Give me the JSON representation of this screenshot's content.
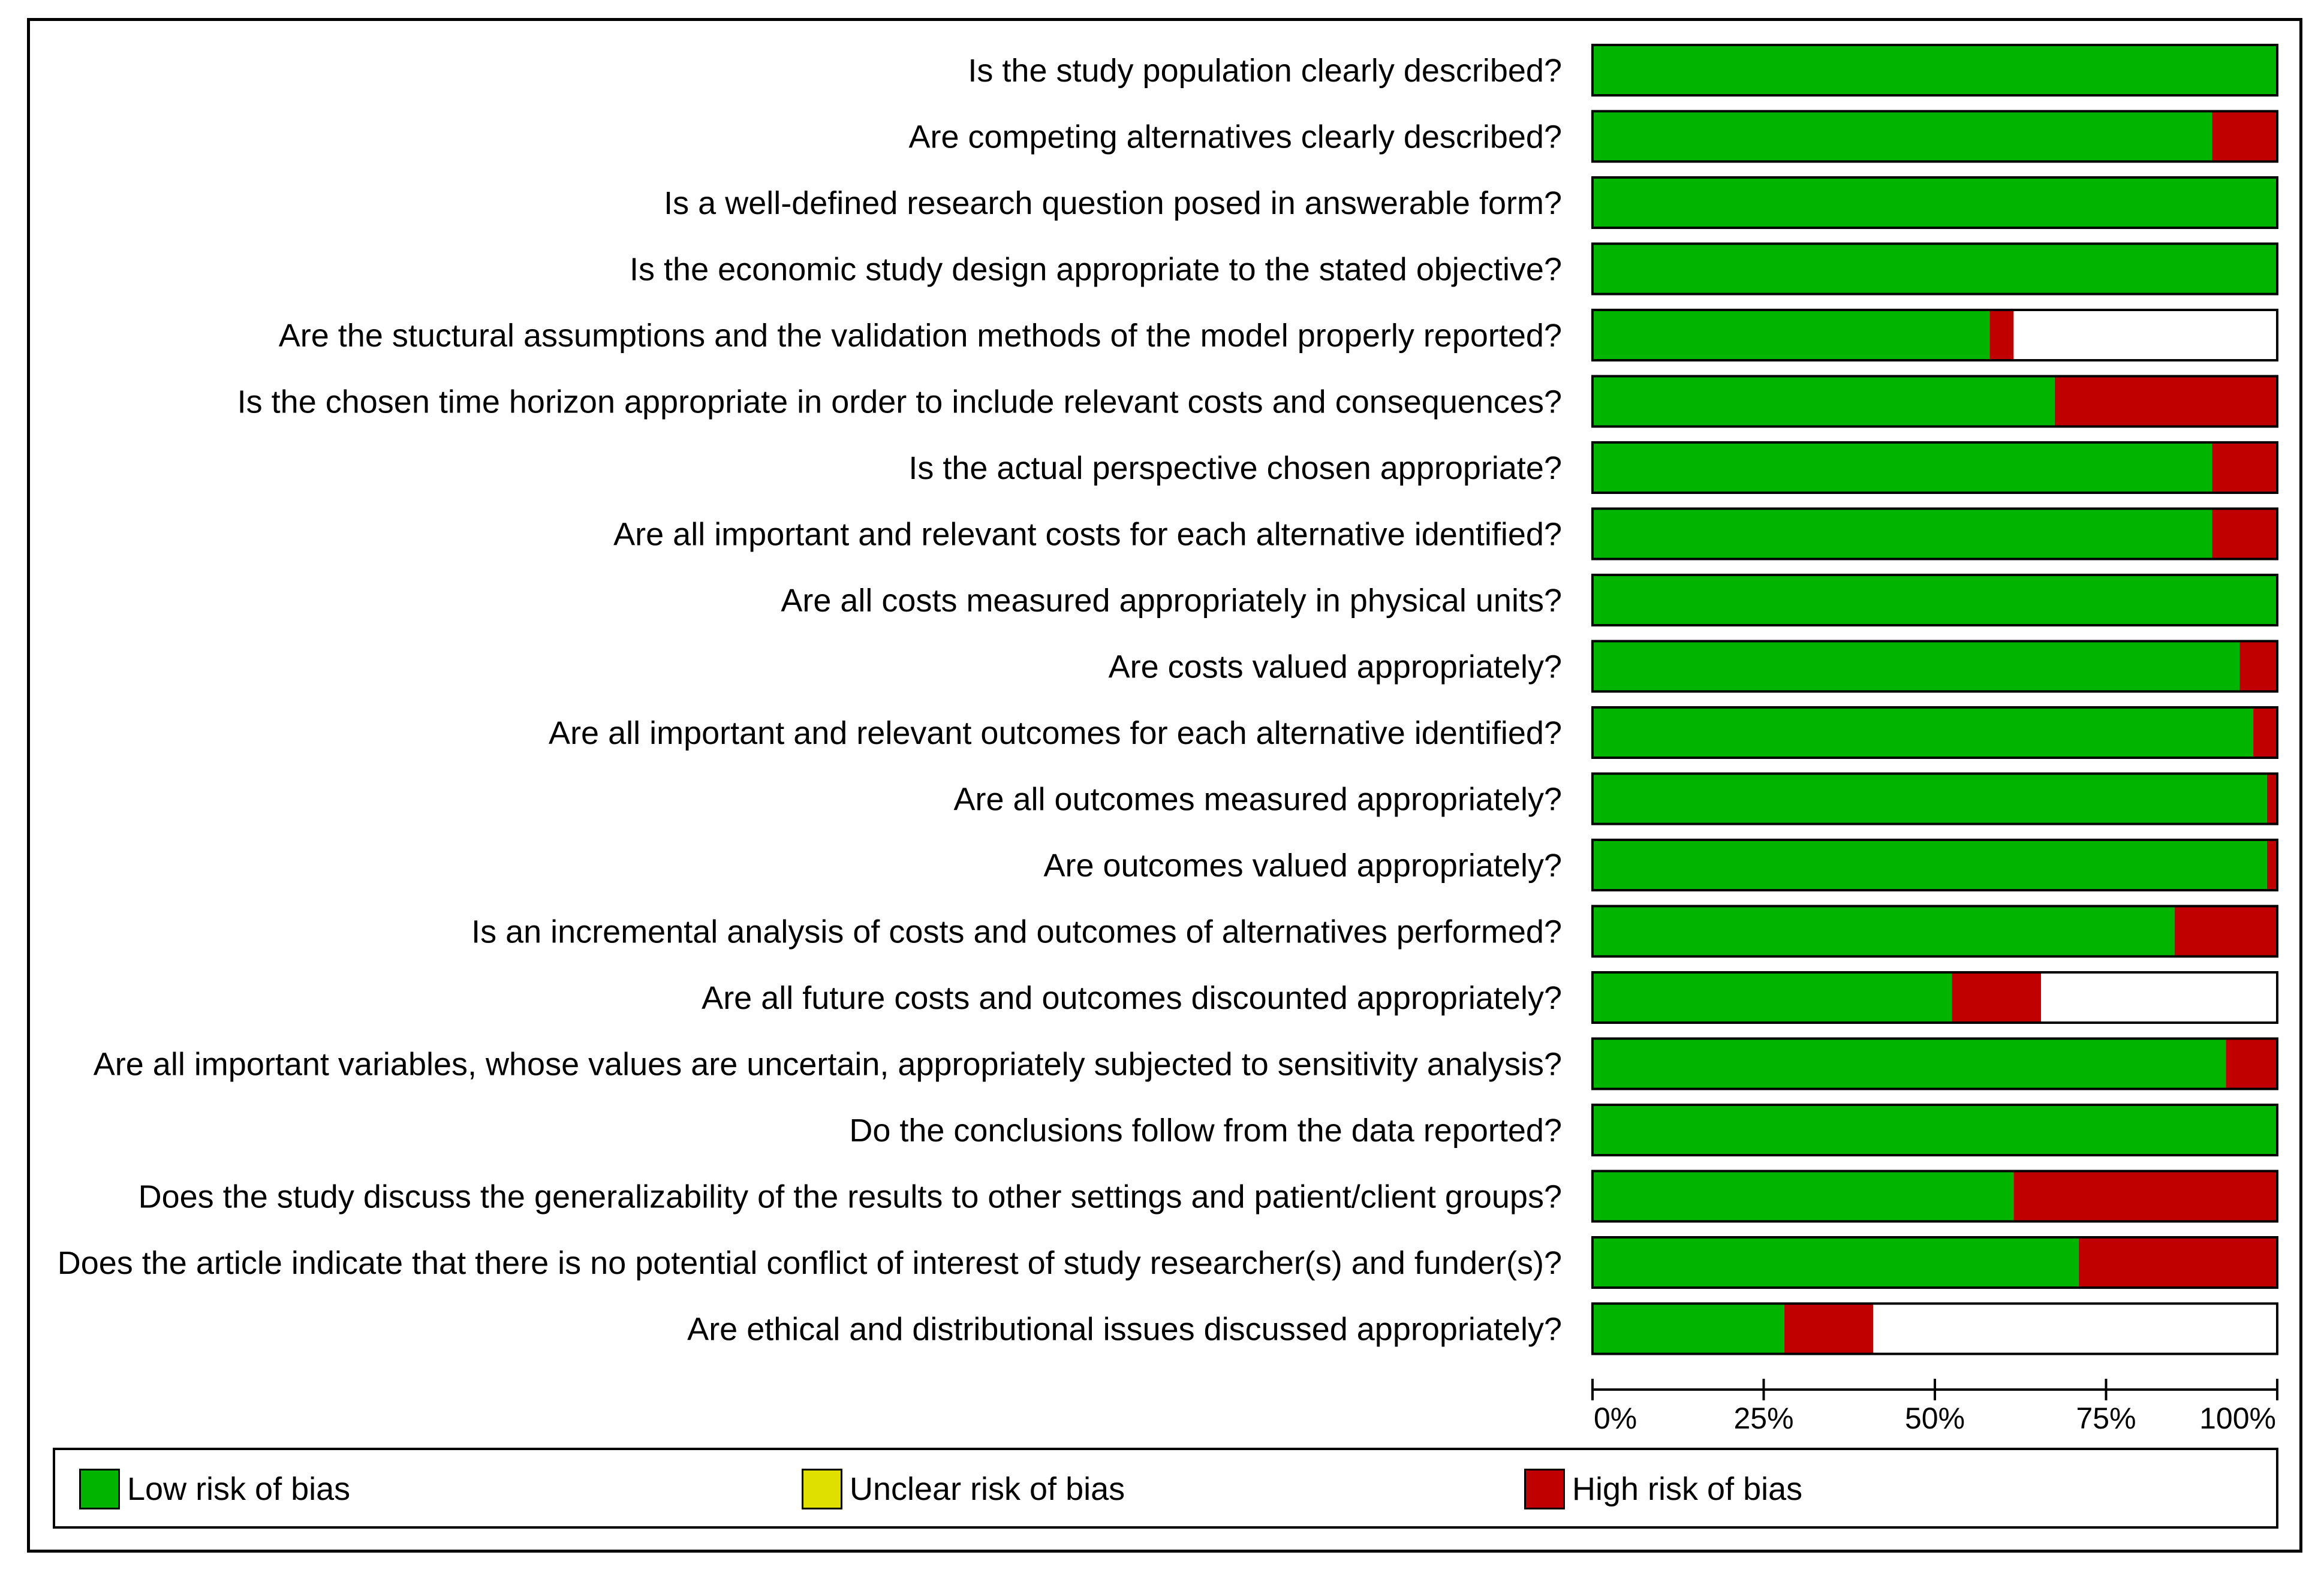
{
  "colors": {
    "low": "#00b400",
    "unclear": "#e0e000",
    "high": "#c00000",
    "none": "#ffffff"
  },
  "legend": {
    "low_label": "Low risk of bias",
    "unclear_label": "Unclear risk of bias",
    "high_label": "High risk of bias"
  },
  "chart_data": {
    "type": "bar",
    "orientation": "horizontal",
    "stacked": true,
    "xlim": [
      0,
      100
    ],
    "ticks": [
      "0%",
      "25%",
      "50%",
      "75%",
      "100%"
    ],
    "categories": [
      "Is the study population clearly described?",
      "Are competing alternatives clearly described?",
      "Is a well-defined research question posed in answerable form?",
      "Is the economic study design appropriate to the stated objective?",
      "Are the stuctural assumptions and the validation methods of the model properly reported?",
      "Is the chosen time horizon appropriate in order to include relevant costs and consequences?",
      "Is the actual perspective chosen appropriate?",
      "Are all important and relevant costs for each alternative identified?",
      "Are all costs measured appropriately in physical units?",
      "Are costs valued appropriately?",
      "Are all important and relevant outcomes for each alternative identified?",
      "Are all outcomes measured appropriately?",
      "Are outcomes valued appropriately?",
      "Is an incremental analysis of costs and outcomes of alternatives performed?",
      "Are all future costs and outcomes discounted appropriately?",
      "Are all important variables, whose values are uncertain, appropriately subjected to sensitivity analysis?",
      "Do the conclusions follow from the data reported?",
      "Does the study discuss the generalizability of the results to other settings and patient/client groups?",
      "Does the article indicate that there is no potential conflict of interest of study researcher(s) and funder(s)?",
      "Are ethical and distributional issues discussed appropriately?"
    ],
    "series": [
      {
        "name": "Low risk of bias",
        "key": "low",
        "values": [
          100,
          90.5,
          100,
          100,
          58,
          67.5,
          90.5,
          90.5,
          100,
          94.5,
          96.5,
          98.5,
          98.5,
          85,
          52.5,
          92.5,
          100,
          61.5,
          71,
          28
        ]
      },
      {
        "name": "Unclear risk of bias",
        "key": "unclear",
        "values": [
          0,
          0,
          0,
          0,
          0,
          0,
          0,
          0,
          0,
          0,
          0,
          0,
          0,
          0,
          0,
          0,
          0,
          0,
          0,
          0
        ]
      },
      {
        "name": "High risk of bias",
        "key": "high",
        "values": [
          0,
          9.5,
          0,
          0,
          3.5,
          32.5,
          9.5,
          9.5,
          0,
          5.5,
          3.5,
          1.5,
          1.5,
          15,
          13,
          7.5,
          0,
          38.5,
          29,
          13
        ]
      }
    ]
  }
}
